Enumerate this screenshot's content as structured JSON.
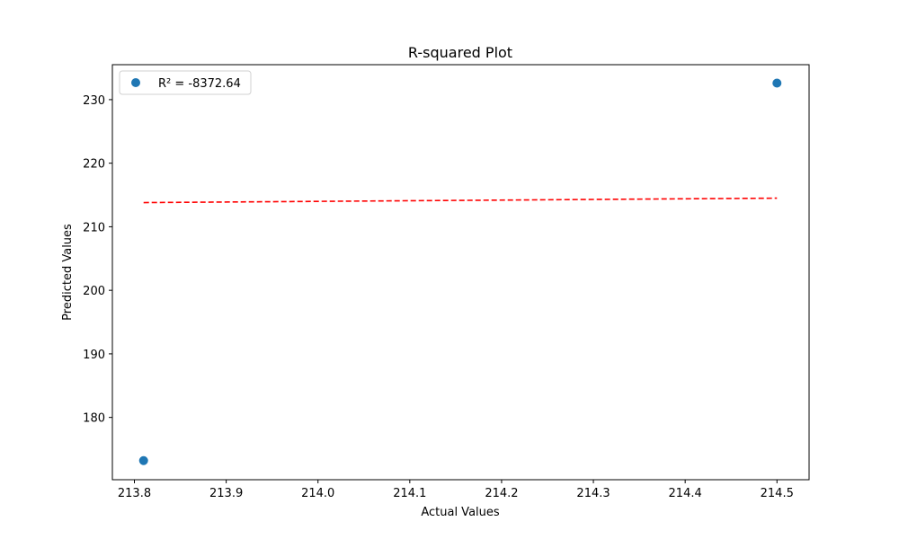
{
  "chart_data": {
    "type": "scatter",
    "title": "R-squared Plot",
    "xlabel": "Actual Values",
    "ylabel": "Predicted Values",
    "xlim": [
      213.776,
      214.535
    ],
    "ylim": [
      170.2,
      235.5
    ],
    "x_ticks": [
      "213.8",
      "213.9",
      "214.0",
      "214.1",
      "214.2",
      "214.3",
      "214.4",
      "214.5"
    ],
    "x_tick_values": [
      213.8,
      213.9,
      214.0,
      214.1,
      214.2,
      214.3,
      214.4,
      214.5
    ],
    "y_ticks": [
      "180",
      "190",
      "200",
      "210",
      "220",
      "230"
    ],
    "y_tick_values": [
      180,
      190,
      200,
      210,
      220,
      230
    ],
    "grid": false,
    "legend_position": "top-left",
    "series": [
      {
        "name": "R² = -8372.64",
        "kind": "scatter",
        "color": "#1f77b4",
        "x": [
          213.81,
          214.5
        ],
        "y": [
          173.2,
          232.6
        ]
      },
      {
        "kind": "line",
        "style": "dashed",
        "color": "#ff0000",
        "x": [
          213.81,
          214.5
        ],
        "y": [
          213.8,
          214.5
        ]
      }
    ]
  }
}
